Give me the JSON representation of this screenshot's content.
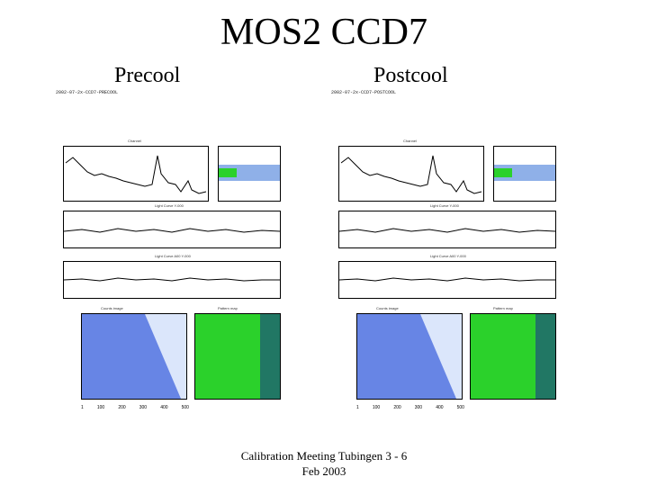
{
  "slide": {
    "title": "MOS2 CCD7",
    "left_label": "Precool",
    "right_label": "Postcool",
    "footer_line1": "Calibration Meeting Tubingen 3 - 6",
    "footer_line2": "Feb 2003"
  },
  "panels": [
    {
      "id": "precool",
      "run_header": "2002-07-2x-CCD7-PRECOOL",
      "spectrum_title": "Channel",
      "lightcurve1_title": "Light Curve Y-000",
      "lightcurve2_title": "Light Curve A00 Y-000",
      "image_title": "Counts image",
      "map_title": "Pattern map",
      "x_ticks": [
        "1",
        "100",
        "200",
        "300",
        "400",
        "500"
      ]
    },
    {
      "id": "postcool",
      "run_header": "2002-07-2x-CCD7-POSTCOOL",
      "spectrum_title": "Channel",
      "lightcurve1_title": "Light Curve Y-000",
      "lightcurve2_title": "Light Curve A00 Y-000",
      "image_title": "Counts image",
      "map_title": "Pattern map",
      "x_ticks": [
        "1",
        "100",
        "200",
        "300",
        "400",
        "500"
      ]
    }
  ],
  "colors": {
    "scatter_blue": "#2a4fd6",
    "map_green": "#2bd12b",
    "map_dark": "#1a3a8a",
    "hot_pixel": "#e83030"
  }
}
